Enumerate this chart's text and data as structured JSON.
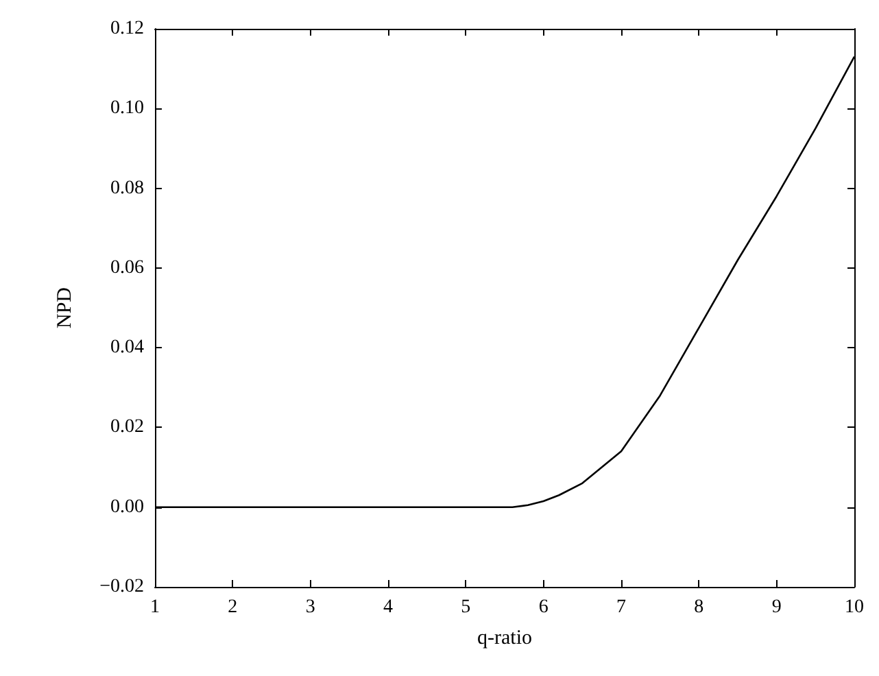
{
  "chart_data": {
    "type": "line",
    "xlabel": "q-ratio",
    "ylabel": "NPD",
    "x": [
      1,
      2,
      3,
      4,
      5,
      5.6,
      5.8,
      6,
      6.2,
      6.5,
      7,
      7.5,
      8,
      8.5,
      9,
      9.5,
      10
    ],
    "series": [
      {
        "color": "#000000",
        "values": [
          0,
          0,
          0,
          0,
          0,
          0,
          0.0005,
          0.0015,
          0.003,
          0.006,
          0.014,
          0.028,
          0.045,
          0.062,
          0.078,
          0.095,
          0.113
        ]
      }
    ],
    "xlim": [
      1,
      10
    ],
    "xticks": [
      1,
      2,
      3,
      4,
      5,
      6,
      7,
      8,
      9,
      10
    ],
    "ylim": [
      -0.02,
      0.12
    ],
    "yticks": [
      {
        "value": -0.02,
        "label": "−0.02"
      },
      {
        "value": 0,
        "label": "0.00"
      },
      {
        "value": 0.02,
        "label": "0.02"
      },
      {
        "value": 0.04,
        "label": "0.04"
      },
      {
        "value": 0.06,
        "label": "0.06"
      },
      {
        "value": 0.08,
        "label": "0.08"
      },
      {
        "value": 0.1,
        "label": "0.10"
      },
      {
        "value": 0.12,
        "label": "0.12"
      }
    ],
    "marker": "none",
    "line_style": "solid"
  }
}
